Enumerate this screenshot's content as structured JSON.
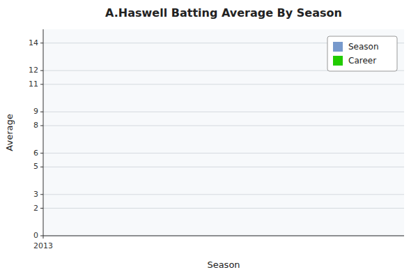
{
  "chart_data": {
    "type": "bar",
    "title": "A.Haswell Batting Average By Season",
    "xlabel": "Season",
    "ylabel": "Average",
    "x": [],
    "series": [
      {
        "name": "Season",
        "color": "#7799cc",
        "values": []
      },
      {
        "name": "Career",
        "color": "#22cc00",
        "values": []
      }
    ],
    "xlim": [
      2013,
      2014
    ],
    "xticks": [
      2013
    ],
    "ylim": [
      0,
      15
    ],
    "yticks": [
      0,
      2,
      3,
      5,
      6,
      8,
      9,
      11,
      12,
      14
    ],
    "grid": true,
    "legend": "upper right"
  }
}
